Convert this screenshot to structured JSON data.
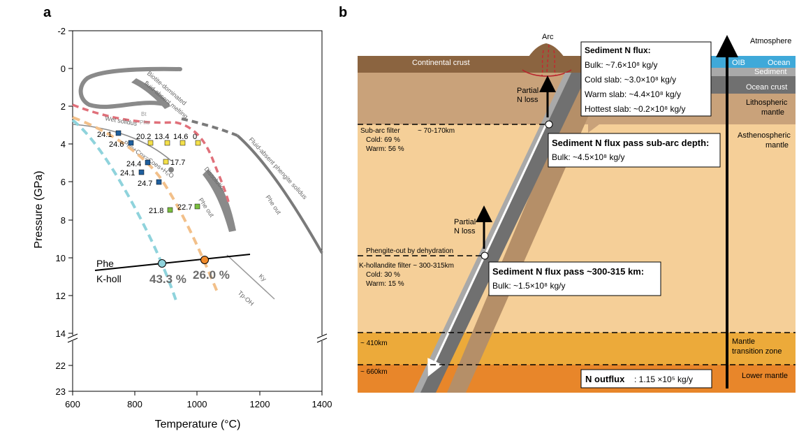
{
  "panel_a": {
    "letter": "a",
    "xlabel": "Temperature (°C)",
    "ylabel": "Pressure (GPa)",
    "x_ticks": [
      "600",
      "800",
      "1000",
      "1200",
      "1400"
    ],
    "y_ticks": [
      "-2",
      "0",
      "2",
      "4",
      "6",
      "8",
      "10",
      "12",
      "14",
      "22",
      "23"
    ],
    "curve_labels": {
      "biotite": "Biotite-dominated fluid-absent melting",
      "phengite": "Fluid-absent phengite solidus",
      "phe_out_right": "Phe out",
      "phe_out_mid": "Phe out",
      "dissolution": "Dissolution",
      "wet_solidus": "Wet solidus",
      "reaction": "Phe+Cpx=Coes+H₂O",
      "bt": "Bt",
      "phe": "Phe",
      "ky": "Ky",
      "tp_oh": "Tp-OH"
    },
    "phe_label": "Phe",
    "kholl_label": "K-holl",
    "cold_percent": "43.3 %",
    "warm_percent": "26.0 %",
    "point_labels": [
      "24.1",
      "24.6",
      "20.2",
      "13.4",
      "14.6",
      "0",
      "17.7",
      "24.4",
      "24.1",
      "24.7",
      "21.8",
      "22.7"
    ],
    "colors": {
      "cold": "#8fd3dc",
      "warm": "#f2c08a",
      "red": "#e0707a",
      "green": "#7bbf3f",
      "yellow": "#f4e04a",
      "blue": "#1f5f9e",
      "gray": "#808080"
    }
  },
  "panel_b": {
    "letter": "b",
    "arc": "Arc",
    "continental_crust": "Continental crust",
    "oib": "OIB",
    "atmosphere": "Atmosphere",
    "ocean": "Ocean",
    "sediment": "Sediment",
    "ocean_crust": "Ocean crust",
    "lithospheric_mantle": "Lithospheric mantle",
    "asthenospheric_mantle": "Asthenospheric mantle",
    "mantle_transition_zone": "Mantle transition zone",
    "lower_mantle": "Lower mantle",
    "partial_n_loss_1": "Partial N loss",
    "partial_n_loss_2": "Partial N loss",
    "sub_arc_filter": "Sub-arc filter",
    "sub_arc_depth": "~ 70-170km",
    "sub_arc_cold": "Cold: 69 %",
    "sub_arc_warm": "Warm: 56 %",
    "phengite_out": "Phengite-out by dehydration",
    "kholl_filter": "K-hollandite filter ~ 300-315km",
    "kholl_cold": "Cold: 30 %",
    "kholl_warm": "Warm: 15 %",
    "depth_410": "~ 410km",
    "depth_660": "~ 660km",
    "box1": {
      "title": "Sediment N flux:",
      "lines": [
        "Bulk: ~7.6×10⁸ kg/y",
        "Cold slab: ~3.0×10⁸ kg/y",
        "Warm slab: ~4.4×10⁸ kg/y",
        "Hottest slab: ~0.2×10⁸ kg/y"
      ]
    },
    "box2": {
      "title": "Sediment N flux pass sub-arc depth:",
      "line": "Bulk: ~4.5×10⁸ kg/y"
    },
    "box3": {
      "title": "Sediment N flux pass ~300-315 km:",
      "line": "Bulk: ~1.5×10⁸ kg/y"
    },
    "outflux_label": "N outflux",
    "outflux_value": ": 1.15 ×10⁵ kg/y"
  }
}
